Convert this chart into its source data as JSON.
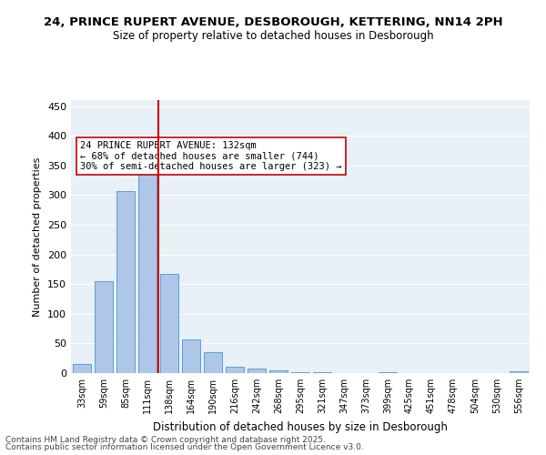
{
  "title1": "24, PRINCE RUPERT AVENUE, DESBOROUGH, KETTERING, NN14 2PH",
  "title2": "Size of property relative to detached houses in Desborough",
  "xlabel": "Distribution of detached houses by size in Desborough",
  "ylabel": "Number of detached properties",
  "bar_labels": [
    "33sqm",
    "59sqm",
    "85sqm",
    "111sqm",
    "138sqm",
    "164sqm",
    "190sqm",
    "216sqm",
    "242sqm",
    "268sqm",
    "295sqm",
    "321sqm",
    "347sqm",
    "373sqm",
    "399sqm",
    "425sqm",
    "451sqm",
    "478sqm",
    "504sqm",
    "530sqm",
    "556sqm"
  ],
  "bar_values": [
    15,
    155,
    307,
    342,
    167,
    56,
    35,
    10,
    8,
    4,
    2,
    1,
    0,
    0,
    1,
    0,
    0,
    0,
    0,
    0,
    3
  ],
  "bar_color": "#aec6e8",
  "bar_edge_color": "#5a9fd4",
  "vline_x": 4,
  "vline_color": "#cc0000",
  "annotation_text": "24 PRINCE RUPERT AVENUE: 132sqm\n← 68% of detached houses are smaller (744)\n30% of semi-detached houses are larger (323) →",
  "annotation_box_color": "#ffffff",
  "annotation_box_edge": "#cc0000",
  "ylim": [
    0,
    460
  ],
  "yticks": [
    0,
    50,
    100,
    150,
    200,
    250,
    300,
    350,
    400,
    450
  ],
  "background_color": "#e8f0f8",
  "footer1": "Contains HM Land Registry data © Crown copyright and database right 2025.",
  "footer2": "Contains public sector information licensed under the Open Government Licence v3.0."
}
